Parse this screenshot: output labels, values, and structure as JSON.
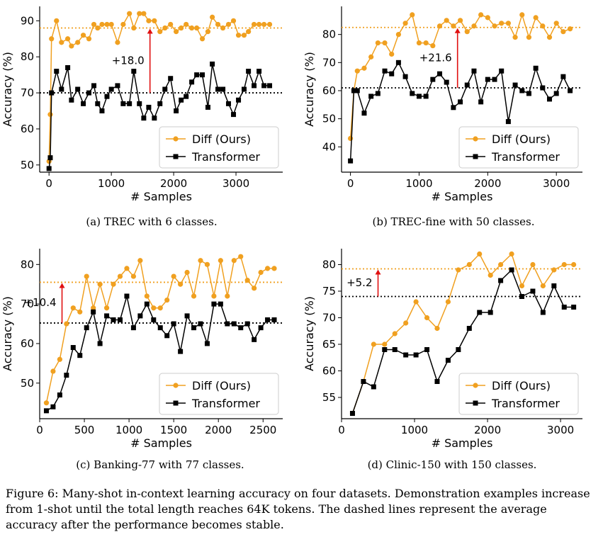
{
  "figure_caption": "Figure 6: Many-shot in-context learning accuracy on four datasets. Demonstration examples increase from 1-shot until the total length reaches 64K tokens. The dashed lines represent the average accuracy after the performance becomes stable.",
  "colors": {
    "diff": "#f0a020",
    "transformer": "#000000",
    "arrow": "#e01010"
  },
  "chart_data": [
    {
      "type": "line",
      "caption": "(a) TREC with 6 classes.",
      "xlabel": "# Samples",
      "ylabel": "Accuracy (%)",
      "xlim": [
        -150,
        3750
      ],
      "ylim": [
        48,
        94
      ],
      "xticks": [
        0,
        1000,
        2000,
        3000
      ],
      "xtick_labels": [
        "0",
        "1000",
        "2000",
        "3000"
      ],
      "yticks": [
        50,
        60,
        70,
        80,
        90
      ],
      "ytick_labels": [
        "50",
        "60",
        "70",
        "80",
        "90"
      ],
      "legend": [
        "Diff (Ours)",
        "Transformer"
      ],
      "legend_position": "bottom-right",
      "series": [
        {
          "name": "Diff (Ours)",
          "x": [
            0,
            20,
            40,
            120,
            200,
            300,
            360,
            460,
            550,
            640,
            720,
            780,
            850,
            930,
            1000,
            1100,
            1190,
            1290,
            1360,
            1450,
            1520,
            1600,
            1690,
            1780,
            1860,
            1950,
            2040,
            2120,
            2200,
            2290,
            2370,
            2460,
            2550,
            2620,
            2710,
            2790,
            2880,
            2960,
            3040,
            3130,
            3200,
            3290,
            3370,
            3450,
            3540
          ],
          "y": [
            51,
            64,
            85,
            90,
            84,
            85,
            83,
            84,
            86,
            85,
            89,
            88,
            89,
            89,
            89,
            84,
            89,
            92,
            88,
            92,
            92,
            90,
            90,
            87,
            88,
            89,
            87,
            88,
            89,
            88,
            88,
            85,
            87,
            91,
            89,
            88,
            89,
            90,
            86,
            86,
            87,
            89,
            89,
            89,
            89
          ]
        },
        {
          "name": "Transformer",
          "x": [
            0,
            20,
            40,
            120,
            200,
            300,
            360,
            460,
            550,
            640,
            720,
            780,
            850,
            930,
            1000,
            1100,
            1190,
            1290,
            1360,
            1450,
            1520,
            1600,
            1690,
            1780,
            1860,
            1950,
            2040,
            2120,
            2200,
            2290,
            2370,
            2460,
            2550,
            2620,
            2710,
            2790,
            2880,
            2960,
            3040,
            3130,
            3200,
            3290,
            3370,
            3450,
            3540
          ],
          "y": [
            49,
            52,
            70,
            76,
            71,
            77,
            68,
            71,
            67,
            70,
            72,
            67,
            65,
            69,
            71,
            72,
            67,
            67,
            76,
            67,
            63,
            66,
            63,
            67,
            71,
            74,
            65,
            68,
            69,
            73,
            75,
            75,
            66,
            78,
            71,
            71,
            67,
            64,
            68,
            71,
            76,
            72,
            76,
            72,
            72
          ]
        }
      ],
      "reference_lines": [
        {
          "series": "Diff (Ours)",
          "y": 88,
          "style": "dotted"
        },
        {
          "series": "Transformer",
          "y": 70,
          "style": "dotted"
        }
      ],
      "annotation": {
        "text": "+18.0",
        "x": 1620,
        "y_from": 70,
        "y_to": 88
      }
    },
    {
      "type": "line",
      "caption": "(b) TREC-fine with 50 classes.",
      "xlabel": "# Samples",
      "ylabel": "Accuracy (%)",
      "xlim": [
        -130,
        3380
      ],
      "ylim": [
        31,
        90
      ],
      "xticks": [
        0,
        1000,
        2000,
        3000
      ],
      "xtick_labels": [
        "0",
        "1000",
        "2000",
        "3000"
      ],
      "yticks": [
        40,
        50,
        60,
        70,
        80
      ],
      "ytick_labels": [
        "40",
        "50",
        "60",
        "70",
        "80"
      ],
      "legend": [
        "Diff (Ours)",
        "Transformer"
      ],
      "legend_position": "bottom-right",
      "series": [
        {
          "name": "Diff (Ours)",
          "x": [
            0,
            50,
            100,
            200,
            300,
            400,
            500,
            600,
            700,
            800,
            900,
            1000,
            1100,
            1200,
            1300,
            1400,
            1500,
            1600,
            1700,
            1800,
            1900,
            2000,
            2100,
            2200,
            2300,
            2400,
            2500,
            2600,
            2700,
            2800,
            2900,
            3000,
            3100,
            3200
          ],
          "y": [
            43,
            60,
            67,
            68,
            72,
            77,
            77,
            73,
            80,
            84,
            87,
            77,
            77,
            76,
            83,
            85,
            83,
            85,
            81,
            83,
            87,
            86,
            83,
            84,
            84,
            79,
            87,
            79,
            86,
            83,
            79,
            84,
            81,
            82
          ]
        },
        {
          "name": "Transformer",
          "x": [
            0,
            50,
            100,
            200,
            300,
            400,
            500,
            600,
            700,
            800,
            900,
            1000,
            1100,
            1200,
            1300,
            1400,
            1500,
            1600,
            1700,
            1800,
            1900,
            2000,
            2100,
            2200,
            2300,
            2400,
            2500,
            2600,
            2700,
            2800,
            2900,
            3000,
            3100,
            3200
          ],
          "y": [
            35,
            60,
            60,
            52,
            58,
            59,
            67,
            66,
            70,
            65,
            59,
            58,
            58,
            64,
            66,
            63,
            54,
            56,
            62,
            67,
            56,
            64,
            64,
            67,
            49,
            62,
            60,
            59,
            68,
            61,
            57,
            59,
            65,
            60
          ]
        }
      ],
      "reference_lines": [
        {
          "series": "Diff (Ours)",
          "y": 82.5,
          "style": "dotted"
        },
        {
          "series": "Transformer",
          "y": 61,
          "style": "dotted"
        }
      ],
      "annotation": {
        "text": "+21.6",
        "x": 1560,
        "y_from": 61,
        "y_to": 82.5
      }
    },
    {
      "type": "line",
      "caption": "(c) Banking-77 with 77 classes.",
      "xlabel": "# Samples",
      "ylabel": "Accuracy (%)",
      "xlim": [
        0,
        2720
      ],
      "ylim": [
        41,
        84
      ],
      "xticks": [
        0,
        500,
        1000,
        1500,
        2000,
        2500
      ],
      "xtick_labels": [
        "0",
        "500",
        "1000",
        "1500",
        "2000",
        "2500"
      ],
      "yticks": [
        50,
        60,
        70,
        80
      ],
      "ytick_labels": [
        "50",
        "60",
        "70",
        "80"
      ],
      "legend": [
        "Diff (Ours)",
        "Transformer"
      ],
      "legend_position": "bottom-right",
      "series": [
        {
          "name": "Diff (Ours)",
          "x": [
            75,
            150,
            225,
            300,
            375,
            450,
            525,
            600,
            675,
            750,
            825,
            900,
            975,
            1050,
            1125,
            1200,
            1275,
            1350,
            1425,
            1500,
            1575,
            1650,
            1725,
            1800,
            1875,
            1950,
            2025,
            2100,
            2175,
            2250,
            2325,
            2400,
            2475,
            2550,
            2625
          ],
          "y": [
            45,
            53,
            56,
            65,
            69,
            68,
            77,
            69,
            75,
            69,
            75,
            77,
            79,
            77,
            81,
            72,
            69,
            69,
            71,
            77,
            75,
            78,
            72,
            81,
            80,
            72,
            81,
            72,
            81,
            82,
            76,
            74,
            78,
            79,
            79
          ]
        },
        {
          "name": "Transformer",
          "x": [
            75,
            150,
            225,
            300,
            375,
            450,
            525,
            600,
            675,
            750,
            825,
            900,
            975,
            1050,
            1125,
            1200,
            1275,
            1350,
            1425,
            1500,
            1575,
            1650,
            1725,
            1800,
            1875,
            1950,
            2025,
            2100,
            2175,
            2250,
            2325,
            2400,
            2475,
            2550,
            2625
          ],
          "y": [
            43,
            44,
            47,
            52,
            59,
            57,
            64,
            68,
            60,
            67,
            66,
            66,
            72,
            64,
            67,
            70,
            66,
            64,
            62,
            65,
            58,
            67,
            64,
            65,
            60,
            70,
            70,
            65,
            65,
            64,
            65,
            61,
            64,
            66,
            66
          ]
        }
      ],
      "reference_lines": [
        {
          "series": "Diff (Ours)",
          "y": 75.5,
          "style": "dotted"
        },
        {
          "series": "Transformer",
          "y": 65.2,
          "style": "dotted"
        }
      ],
      "annotation": {
        "text": "+10.4",
        "x": 250,
        "y_from": 65.2,
        "y_to": 75.5
      }
    },
    {
      "type": "line",
      "caption": "(d) Clinic-150 with 150 classes.",
      "xlabel": "# Samples",
      "ylabel": "Accuracy (%)",
      "xlim": [
        0,
        3300
      ],
      "ylim": [
        51,
        83
      ],
      "xticks": [
        0,
        1000,
        2000,
        3000
      ],
      "xtick_labels": [
        "0",
        "1000",
        "2000",
        "3000"
      ],
      "yticks": [
        55,
        60,
        65,
        70,
        75,
        80
      ],
      "ytick_labels": [
        "55",
        "60",
        "65",
        "70",
        "75",
        "80"
      ],
      "legend": [
        "Diff (Ours)",
        "Transformer"
      ],
      "legend_position": "bottom-right",
      "series": [
        {
          "name": "Diff (Ours)",
          "x": [
            150,
            300,
            440,
            590,
            730,
            880,
            1020,
            1170,
            1310,
            1460,
            1600,
            1750,
            1890,
            2040,
            2180,
            2330,
            2470,
            2620,
            2760,
            2910,
            3050,
            3180
          ],
          "y": [
            52,
            58,
            65,
            65,
            67,
            69,
            73,
            70,
            68,
            73,
            79,
            80,
            82,
            78,
            80,
            82,
            76,
            80,
            76,
            79,
            80,
            80
          ]
        },
        {
          "name": "Transformer",
          "x": [
            150,
            300,
            440,
            590,
            730,
            880,
            1020,
            1170,
            1310,
            1460,
            1600,
            1750,
            1890,
            2040,
            2180,
            2330,
            2470,
            2620,
            2760,
            2910,
            3050,
            3180
          ],
          "y": [
            52,
            58,
            57,
            64,
            64,
            63,
            63,
            64,
            58,
            62,
            64,
            68,
            71,
            71,
            77,
            79,
            74,
            75,
            71,
            76,
            72,
            72
          ]
        }
      ],
      "reference_lines": [
        {
          "series": "Diff (Ours)",
          "y": 79.2,
          "style": "dotted"
        },
        {
          "series": "Transformer",
          "y": 74,
          "style": "dotted"
        }
      ],
      "annotation": {
        "text": "+5.2",
        "x": 500,
        "y_from": 74,
        "y_to": 79.2
      }
    }
  ]
}
